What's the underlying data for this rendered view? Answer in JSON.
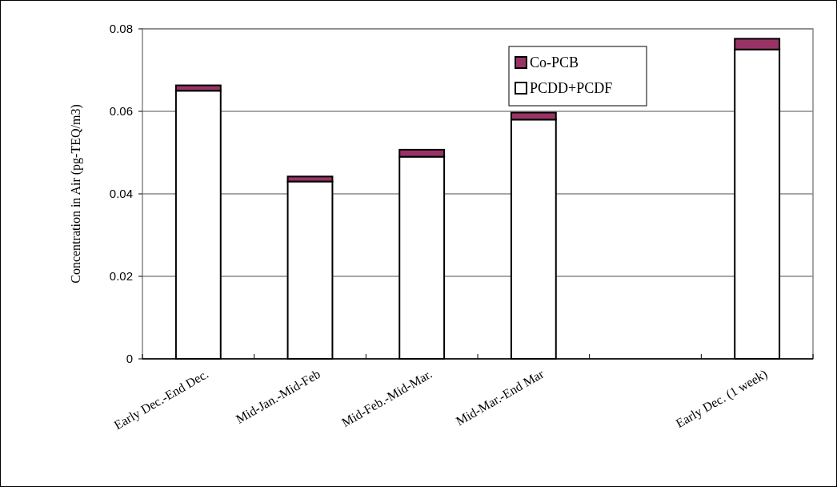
{
  "chart_data": {
    "type": "bar",
    "stacked": true,
    "ylabel": "Concentration in Air (pg-TEQ/m3)",
    "categories": [
      "Early Dec.-End Dec.",
      "Mid-Jan.-Mid-Feb",
      "Mid-Feb.-Mid-Mar.",
      "Mid-Mar.-End Mar",
      null,
      "Early Dec. (1 week)"
    ],
    "series": [
      {
        "name": "PCDD+PCDF",
        "color": "#ffffff",
        "values": [
          0.065,
          0.043,
          0.049,
          0.058,
          null,
          0.075
        ]
      },
      {
        "name": "Co-PCB",
        "color": "#993366",
        "values": [
          0.0013,
          0.0012,
          0.0017,
          0.0017,
          null,
          0.0026
        ]
      }
    ],
    "ylim": [
      0,
      0.08
    ],
    "yticks": [
      {
        "value": 0,
        "label": "0"
      },
      0.02,
      0.04,
      0.06,
      0.08
    ],
    "grid": "y",
    "legend": "top right"
  }
}
